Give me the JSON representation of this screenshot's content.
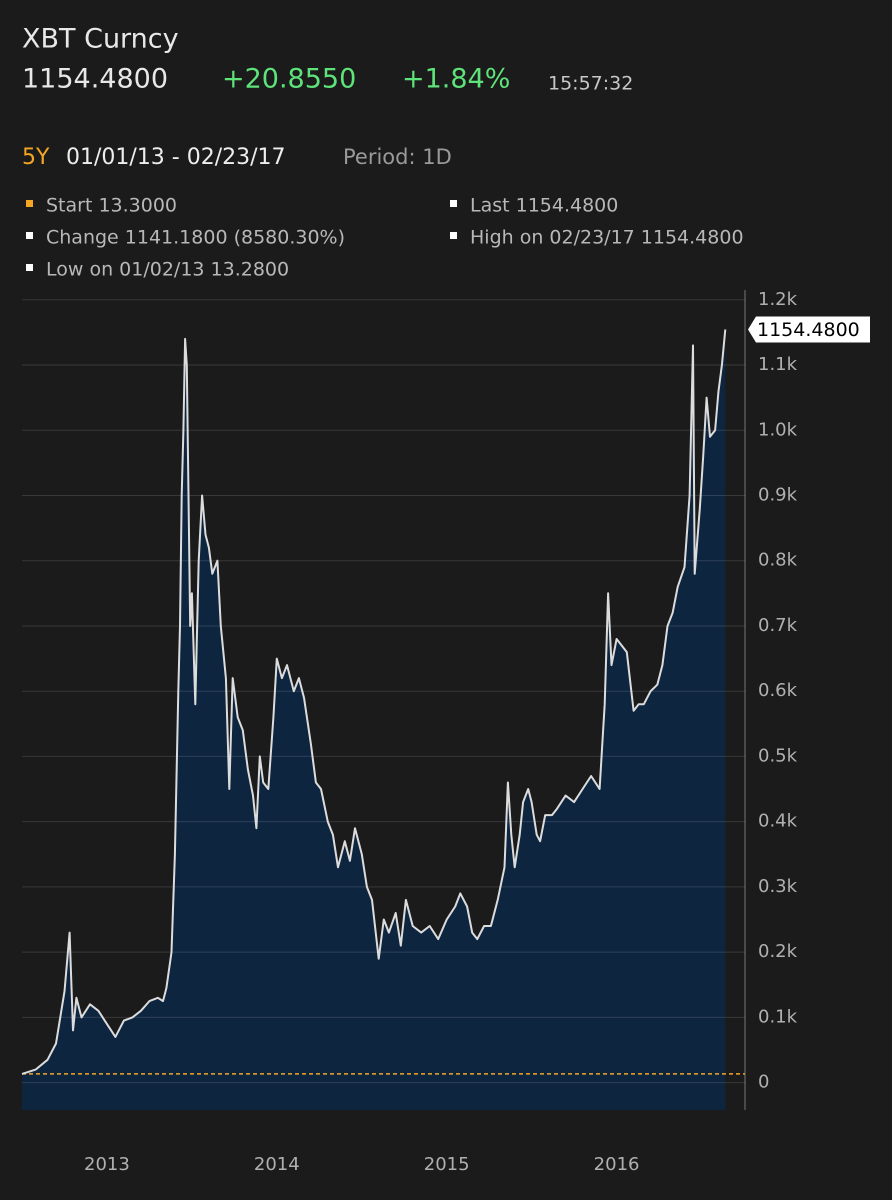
{
  "header": {
    "title": "XBT Curncy",
    "price": "1154.4800",
    "change": "+20.8550",
    "change_pct": "+1.84%",
    "time": "15:57:32",
    "range": "5Y",
    "dates": "01/01/13 - 02/23/17",
    "period": "Period: 1D",
    "stats": [
      "Start 13.3000",
      "Last 1154.4800",
      "Change 1141.1800 (8580.30%)",
      "High on 02/23/17 1154.4800",
      "Low on 01/02/13 13.2800"
    ]
  },
  "chart_data": {
    "type": "area",
    "color": "#dcdcdc",
    "fill": "#0e2540",
    "reference_line": 13.3,
    "reference_color": "#f5a623",
    "x": [
      2013.0,
      2013.08,
      2013.15,
      2013.2,
      2013.25,
      2013.28,
      2013.3,
      2013.32,
      2013.35,
      2013.4,
      2013.45,
      2013.5,
      2013.55,
      2013.6,
      2013.65,
      2013.7,
      2013.75,
      2013.8,
      2013.83,
      2013.85,
      2013.88,
      2013.9,
      2013.92,
      2013.93,
      2013.94,
      2013.95,
      2013.96,
      2013.97,
      2013.98,
      2013.99,
      2014.0,
      2014.02,
      2014.04,
      2014.06,
      2014.08,
      2014.1,
      2014.12,
      2014.15,
      2014.17,
      2014.2,
      2014.22,
      2014.24,
      2014.27,
      2014.3,
      2014.33,
      2014.36,
      2014.38,
      2014.4,
      2014.42,
      2014.45,
      2014.48,
      2014.5,
      2014.53,
      2014.56,
      2014.6,
      2014.63,
      2014.66,
      2014.7,
      2014.73,
      2014.76,
      2014.8,
      2014.83,
      2014.86,
      2014.9,
      2014.93,
      2014.96,
      2015.0,
      2015.03,
      2015.06,
      2015.1,
      2015.13,
      2015.16,
      2015.2,
      2015.23,
      2015.26,
      2015.3,
      2015.35,
      2015.4,
      2015.45,
      2015.5,
      2015.55,
      2015.58,
      2015.62,
      2015.65,
      2015.68,
      2015.72,
      2015.76,
      2015.8,
      2015.84,
      2015.86,
      2015.88,
      2015.9,
      2015.93,
      2015.95,
      2015.98,
      2016.0,
      2016.03,
      2016.05,
      2016.08,
      2016.12,
      2016.15,
      2016.2,
      2016.25,
      2016.3,
      2016.35,
      2016.4,
      2016.43,
      2016.45,
      2016.47,
      2016.5,
      2016.53,
      2016.56,
      2016.6,
      2016.63,
      2016.66,
      2016.7,
      2016.74,
      2016.77,
      2016.8,
      2016.83,
      2016.86,
      2016.9,
      2016.93,
      2016.95,
      2016.96,
      2016.99,
      2017.01,
      2017.03,
      2017.05,
      2017.08,
      2017.1,
      2017.12,
      2017.14
    ],
    "values": [
      13.3,
      20,
      35,
      60,
      140,
      230,
      80,
      130,
      100,
      120,
      110,
      90,
      70,
      95,
      100,
      110,
      125,
      130,
      125,
      145,
      200,
      350,
      600,
      700,
      900,
      1000,
      1140,
      1100,
      900,
      700,
      750,
      580,
      800,
      900,
      840,
      820,
      780,
      800,
      700,
      620,
      450,
      620,
      560,
      540,
      480,
      440,
      390,
      500,
      460,
      450,
      560,
      650,
      620,
      640,
      600,
      620,
      590,
      520,
      460,
      450,
      400,
      380,
      330,
      370,
      340,
      390,
      350,
      300,
      280,
      190,
      250,
      230,
      260,
      210,
      280,
      240,
      230,
      240,
      220,
      250,
      270,
      290,
      270,
      230,
      220,
      240,
      240,
      280,
      330,
      460,
      380,
      330,
      380,
      430,
      450,
      430,
      380,
      370,
      410,
      410,
      420,
      440,
      430,
      450,
      470,
      450,
      580,
      750,
      640,
      680,
      670,
      660,
      570,
      580,
      580,
      600,
      610,
      640,
      700,
      720,
      760,
      790,
      900,
      1130,
      780,
      880,
      960,
      1050,
      990,
      1000,
      1060,
      1100,
      1154.48
    ],
    "xlim": [
      2013,
      2017.15
    ],
    "xticks": [
      2013,
      2014,
      2015,
      2016
    ],
    "ylim": [
      -42,
      1215
    ],
    "yticks": [
      0,
      {
        "value": 100,
        "label": "0.1k"
      },
      {
        "value": 200,
        "label": "0.2k"
      },
      {
        "value": 300,
        "label": "0.3k"
      },
      {
        "value": 400,
        "label": "0.4k"
      },
      {
        "value": 500,
        "label": "0.5k"
      },
      {
        "value": 600,
        "label": "0.6k"
      },
      {
        "value": 700,
        "label": "0.7k"
      },
      {
        "value": 800,
        "label": "0.8k"
      },
      {
        "value": 900,
        "label": "0.9k"
      },
      {
        "value": 1000,
        "label": "1.0k"
      },
      {
        "value": 1100,
        "label": "1.1k"
      },
      {
        "value": 1200,
        "label": "1.2k"
      }
    ],
    "grid": true
  }
}
